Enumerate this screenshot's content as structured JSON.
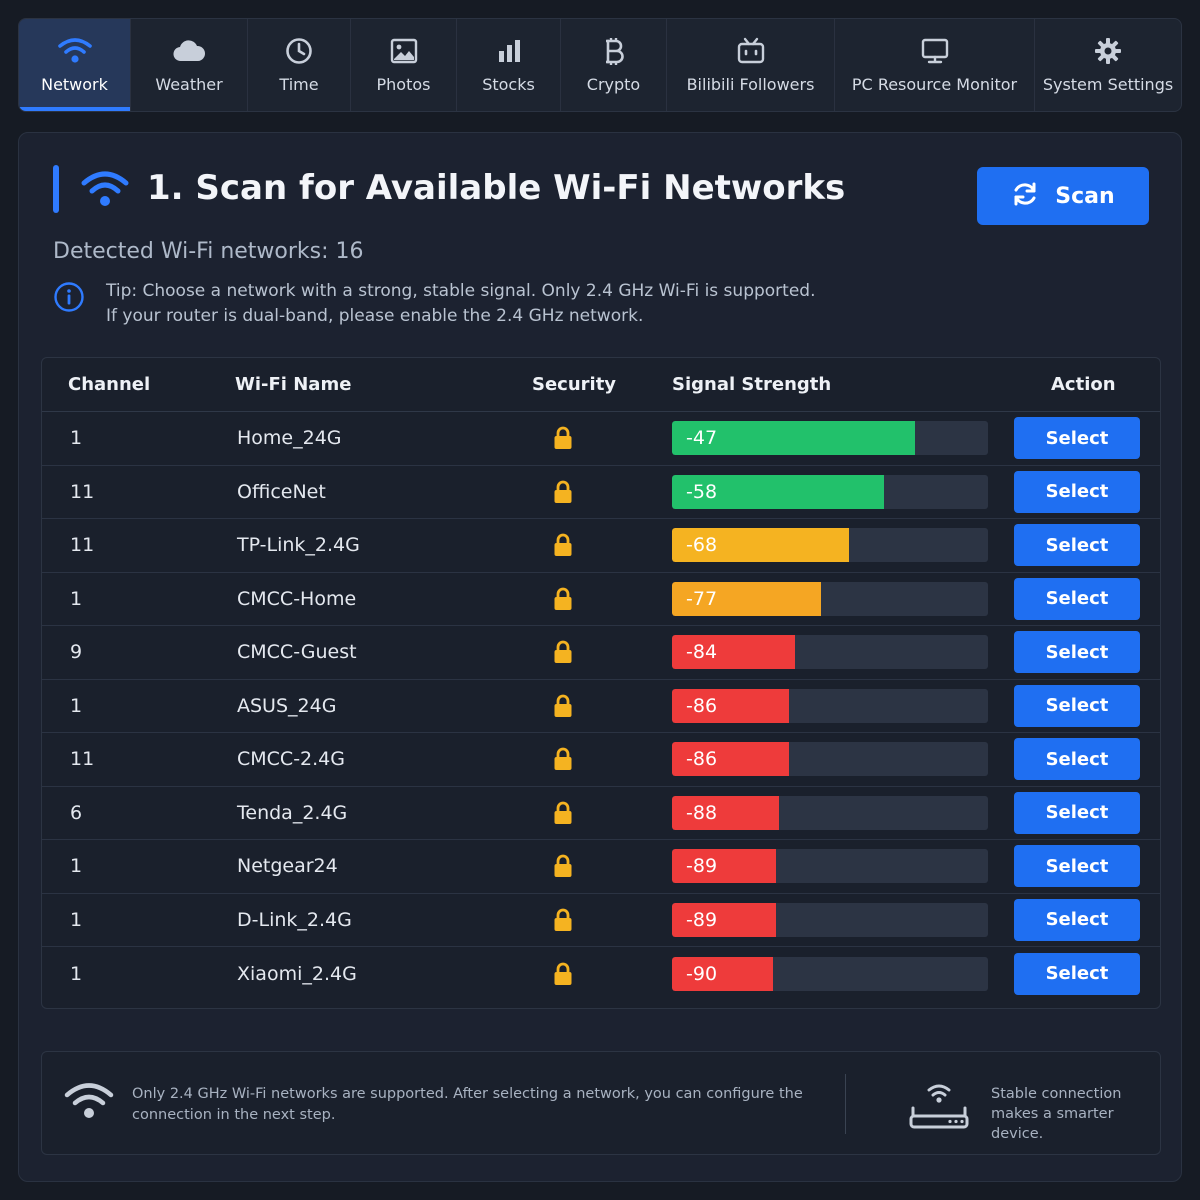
{
  "nav": {
    "items": [
      {
        "label": "Network",
        "icon": "wifi-icon",
        "active": true
      },
      {
        "label": "Weather",
        "icon": "cloud-icon",
        "active": false
      },
      {
        "label": "Time",
        "icon": "clock-icon",
        "active": false
      },
      {
        "label": "Photos",
        "icon": "image-icon",
        "active": false
      },
      {
        "label": "Stocks",
        "icon": "bar-chart-icon",
        "active": false
      },
      {
        "label": "Crypto",
        "icon": "bitcoin-icon",
        "active": false
      },
      {
        "label": "Bilibili Followers",
        "icon": "tv-icon",
        "active": false
      },
      {
        "label": "PC Resource Monitor",
        "icon": "monitor-icon",
        "active": false
      },
      {
        "label": "System Settings",
        "icon": "gear-icon",
        "active": false
      }
    ]
  },
  "header": {
    "title": "1. Scan for Available Wi-Fi Networks",
    "scan_label": "Scan",
    "detected": "Detected Wi-Fi networks: 16",
    "tip_line1": "Tip: Choose a network with a strong, stable signal. Only 2.4 GHz Wi-Fi is supported.",
    "tip_line2": "If your router is dual-band, please enable the 2.4 GHz network."
  },
  "table": {
    "columns": {
      "channel": "Channel",
      "name": "Wi-Fi Name",
      "security": "Security",
      "signal": "Signal Strength",
      "action": "Action"
    },
    "select_label": "Select",
    "rows": [
      {
        "channel": "1",
        "name": "Home_24G",
        "security_icon": "lock-icon",
        "signal": "-47",
        "signal_fill": 0.77,
        "signal_color": "#22c16b"
      },
      {
        "channel": "11",
        "name": "OfficeNet",
        "security_icon": "lock-icon",
        "signal": "-58",
        "signal_fill": 0.67,
        "signal_color": "#22c16b"
      },
      {
        "channel": "11",
        "name": "TP-Link_2.4G",
        "security_icon": "lock-icon",
        "signal": "-68",
        "signal_fill": 0.56,
        "signal_color": "#f5b321"
      },
      {
        "channel": "1",
        "name": "CMCC-Home",
        "security_icon": "lock-icon",
        "signal": "-77",
        "signal_fill": 0.47,
        "signal_color": "#f5a623"
      },
      {
        "channel": "9",
        "name": "CMCC-Guest",
        "security_icon": "lock-icon",
        "signal": "-84",
        "signal_fill": 0.39,
        "signal_color": "#ee3b3b"
      },
      {
        "channel": "1",
        "name": "ASUS_24G",
        "security_icon": "lock-icon",
        "signal": "-86",
        "signal_fill": 0.37,
        "signal_color": "#ee3b3b"
      },
      {
        "channel": "11",
        "name": "CMCC-2.4G",
        "security_icon": "lock-icon",
        "signal": "-86",
        "signal_fill": 0.37,
        "signal_color": "#ee3b3b"
      },
      {
        "channel": "6",
        "name": "Tenda_2.4G",
        "security_icon": "lock-icon",
        "signal": "-88",
        "signal_fill": 0.34,
        "signal_color": "#ee3b3b"
      },
      {
        "channel": "1",
        "name": "Netgear24",
        "security_icon": "lock-icon",
        "signal": "-89",
        "signal_fill": 0.33,
        "signal_color": "#ee3b3b"
      },
      {
        "channel": "1",
        "name": "D-Link_2.4G",
        "security_icon": "lock-icon",
        "signal": "-89",
        "signal_fill": 0.33,
        "signal_color": "#ee3b3b"
      },
      {
        "channel": "1",
        "name": "Xiaomi_2.4G",
        "security_icon": "lock-icon",
        "signal": "-90",
        "signal_fill": 0.32,
        "signal_color": "#ee3b3b"
      }
    ]
  },
  "footer": {
    "note": "Only 2.4 GHz Wi-Fi networks are supported. After selecting a network, you can configure the connection in the next step.",
    "slogan": "Stable connection makes a smarter device."
  },
  "colors": {
    "accent": "#1f6ff2",
    "lock": "#f5b321"
  }
}
